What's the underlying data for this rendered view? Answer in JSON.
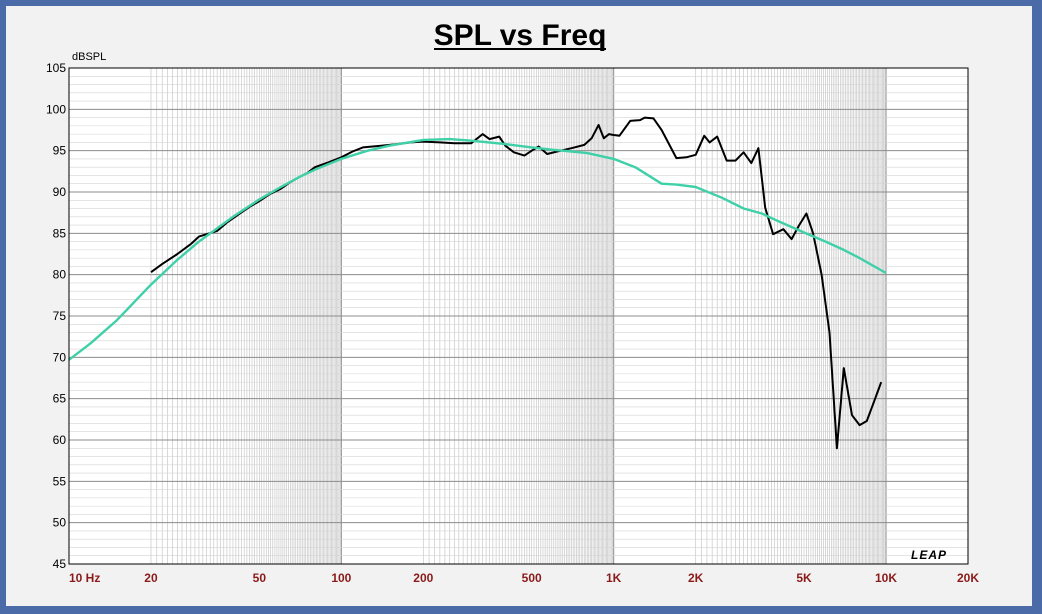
{
  "chart_data": {
    "type": "line",
    "title": "SPL vs Freq",
    "ylabel": "dBSPL",
    "xlabel": "",
    "xscale": "log",
    "xlim": [
      10,
      20000
    ],
    "ylim": [
      45,
      105
    ],
    "yticks": [
      45,
      50,
      55,
      60,
      65,
      70,
      75,
      80,
      85,
      90,
      95,
      100,
      105
    ],
    "xticks": [
      {
        "value": 10,
        "label": "10  Hz"
      },
      {
        "value": 20,
        "label": "20"
      },
      {
        "value": 50,
        "label": "50"
      },
      {
        "value": 100,
        "label": "100"
      },
      {
        "value": 200,
        "label": "200"
      },
      {
        "value": 500,
        "label": "500"
      },
      {
        "value": 1000,
        "label": "1K"
      },
      {
        "value": 2000,
        "label": "2K"
      },
      {
        "value": 5000,
        "label": "5K"
      },
      {
        "value": 10000,
        "label": "10K"
      },
      {
        "value": 20000,
        "label": "20K"
      }
    ],
    "grid": true,
    "logo": "LEAP",
    "series": [
      {
        "color": "#000000",
        "points": [
          [
            20,
            80.3
          ],
          [
            22,
            81.3
          ],
          [
            25,
            82.5
          ],
          [
            28,
            83.7
          ],
          [
            30,
            84.6
          ],
          [
            32,
            84.9
          ],
          [
            35,
            85.3
          ],
          [
            38,
            86.3
          ],
          [
            42,
            87.3
          ],
          [
            46,
            88.2
          ],
          [
            50,
            88.9
          ],
          [
            55,
            89.8
          ],
          [
            60,
            90.4
          ],
          [
            65,
            91.2
          ],
          [
            70,
            91.8
          ],
          [
            75,
            92.3
          ],
          [
            80,
            93.0
          ],
          [
            90,
            93.6
          ],
          [
            100,
            94.2
          ],
          [
            110,
            94.9
          ],
          [
            120,
            95.4
          ],
          [
            140,
            95.6
          ],
          [
            160,
            95.8
          ],
          [
            180,
            96.0
          ],
          [
            200,
            96.1
          ],
          [
            230,
            96.0
          ],
          [
            260,
            95.9
          ],
          [
            300,
            95.9
          ],
          [
            330,
            97.0
          ],
          [
            350,
            96.4
          ],
          [
            380,
            96.7
          ],
          [
            400,
            95.6
          ],
          [
            430,
            94.8
          ],
          [
            470,
            94.4
          ],
          [
            500,
            95.0
          ],
          [
            530,
            95.5
          ],
          [
            570,
            94.6
          ],
          [
            620,
            94.9
          ],
          [
            700,
            95.3
          ],
          [
            780,
            95.7
          ],
          [
            830,
            96.5
          ],
          [
            880,
            98.1
          ],
          [
            920,
            96.5
          ],
          [
            960,
            97.0
          ],
          [
            1000,
            96.9
          ],
          [
            1050,
            96.8
          ],
          [
            1150,
            98.6
          ],
          [
            1250,
            98.7
          ],
          [
            1300,
            99.0
          ],
          [
            1400,
            98.9
          ],
          [
            1500,
            97.5
          ],
          [
            1700,
            94.1
          ],
          [
            1850,
            94.2
          ],
          [
            2000,
            94.5
          ],
          [
            2150,
            96.8
          ],
          [
            2250,
            96.0
          ],
          [
            2400,
            96.7
          ],
          [
            2600,
            93.8
          ],
          [
            2800,
            93.8
          ],
          [
            3000,
            94.8
          ],
          [
            3200,
            93.5
          ],
          [
            3400,
            95.3
          ],
          [
            3600,
            88.1
          ],
          [
            3850,
            84.9
          ],
          [
            4200,
            85.5
          ],
          [
            4500,
            84.3
          ],
          [
            4800,
            86.0
          ],
          [
            5100,
            87.4
          ],
          [
            5400,
            85.0
          ],
          [
            5800,
            80.0
          ],
          [
            6200,
            73.0
          ],
          [
            6600,
            59.0
          ],
          [
            7000,
            68.7
          ],
          [
            7500,
            63.0
          ],
          [
            8000,
            61.8
          ],
          [
            8500,
            62.3
          ],
          [
            9000,
            64.5
          ],
          [
            9600,
            67.0
          ]
        ]
      },
      {
        "color": "#40D0A8",
        "points": [
          [
            10,
            69.7
          ],
          [
            12,
            71.7
          ],
          [
            15,
            74.5
          ],
          [
            20,
            78.8
          ],
          [
            25,
            81.8
          ],
          [
            30,
            84.0
          ],
          [
            40,
            87.0
          ],
          [
            50,
            89.1
          ],
          [
            60,
            90.6
          ],
          [
            70,
            91.8
          ],
          [
            80,
            92.7
          ],
          [
            100,
            94.0
          ],
          [
            125,
            95.0
          ],
          [
            150,
            95.6
          ],
          [
            200,
            96.3
          ],
          [
            250,
            96.4
          ],
          [
            300,
            96.2
          ],
          [
            400,
            95.8
          ],
          [
            500,
            95.4
          ],
          [
            600,
            95.1
          ],
          [
            700,
            94.9
          ],
          [
            800,
            94.7
          ],
          [
            1000,
            94.0
          ],
          [
            1200,
            93.0
          ],
          [
            1500,
            91.0
          ],
          [
            1700,
            90.9
          ],
          [
            2000,
            90.6
          ],
          [
            2500,
            89.3
          ],
          [
            3000,
            88.0
          ],
          [
            3500,
            87.4
          ],
          [
            4000,
            86.5
          ],
          [
            5000,
            85.1
          ],
          [
            6000,
            84.0
          ],
          [
            7000,
            83.0
          ],
          [
            8000,
            82.0
          ],
          [
            10000,
            80.2
          ]
        ]
      }
    ]
  }
}
